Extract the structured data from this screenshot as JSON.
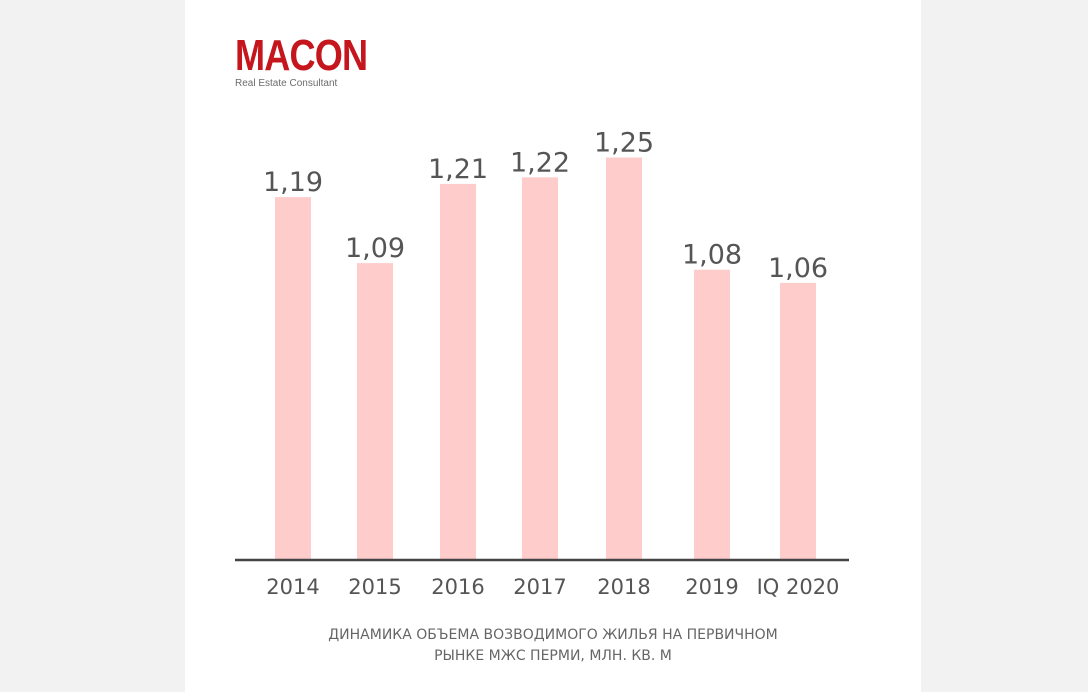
{
  "brand": {
    "name": "MACON",
    "tagline": "Real Estate Consultant",
    "color": "#c4161c"
  },
  "caption": {
    "line1": "ДИНАМИКА ОБЪЕМА ВОЗВОДИМОГО ЖИЛЬЯ НА ПЕРВИЧНОМ",
    "line2": "РЫНКЕ МЖС ПЕРМИ, МЛН. КВ. М"
  },
  "chart_data": {
    "type": "bar",
    "title": "ДИНАМИКА ОБЪЕМА ВОЗВОДИМОГО ЖИЛЬЯ НА ПЕРВИЧНОМ РЫНКЕ МЖС ПЕРМИ, МЛН. КВ. М",
    "categories": [
      "2014",
      "2015",
      "2016",
      "2017",
      "2018",
      "2019",
      "IQ 2020"
    ],
    "values": [
      1.19,
      1.09,
      1.21,
      1.22,
      1.25,
      1.08,
      1.06
    ],
    "value_labels": [
      "1,19",
      "1,09",
      "1,21",
      "1,22",
      "1,25",
      "1,08",
      "1,06"
    ],
    "xlabel": "",
    "ylabel": "",
    "grid": false,
    "legend": "none",
    "bar_color": "#ffcccc",
    "axis_color": "#444444",
    "label_color": "#555555"
  }
}
